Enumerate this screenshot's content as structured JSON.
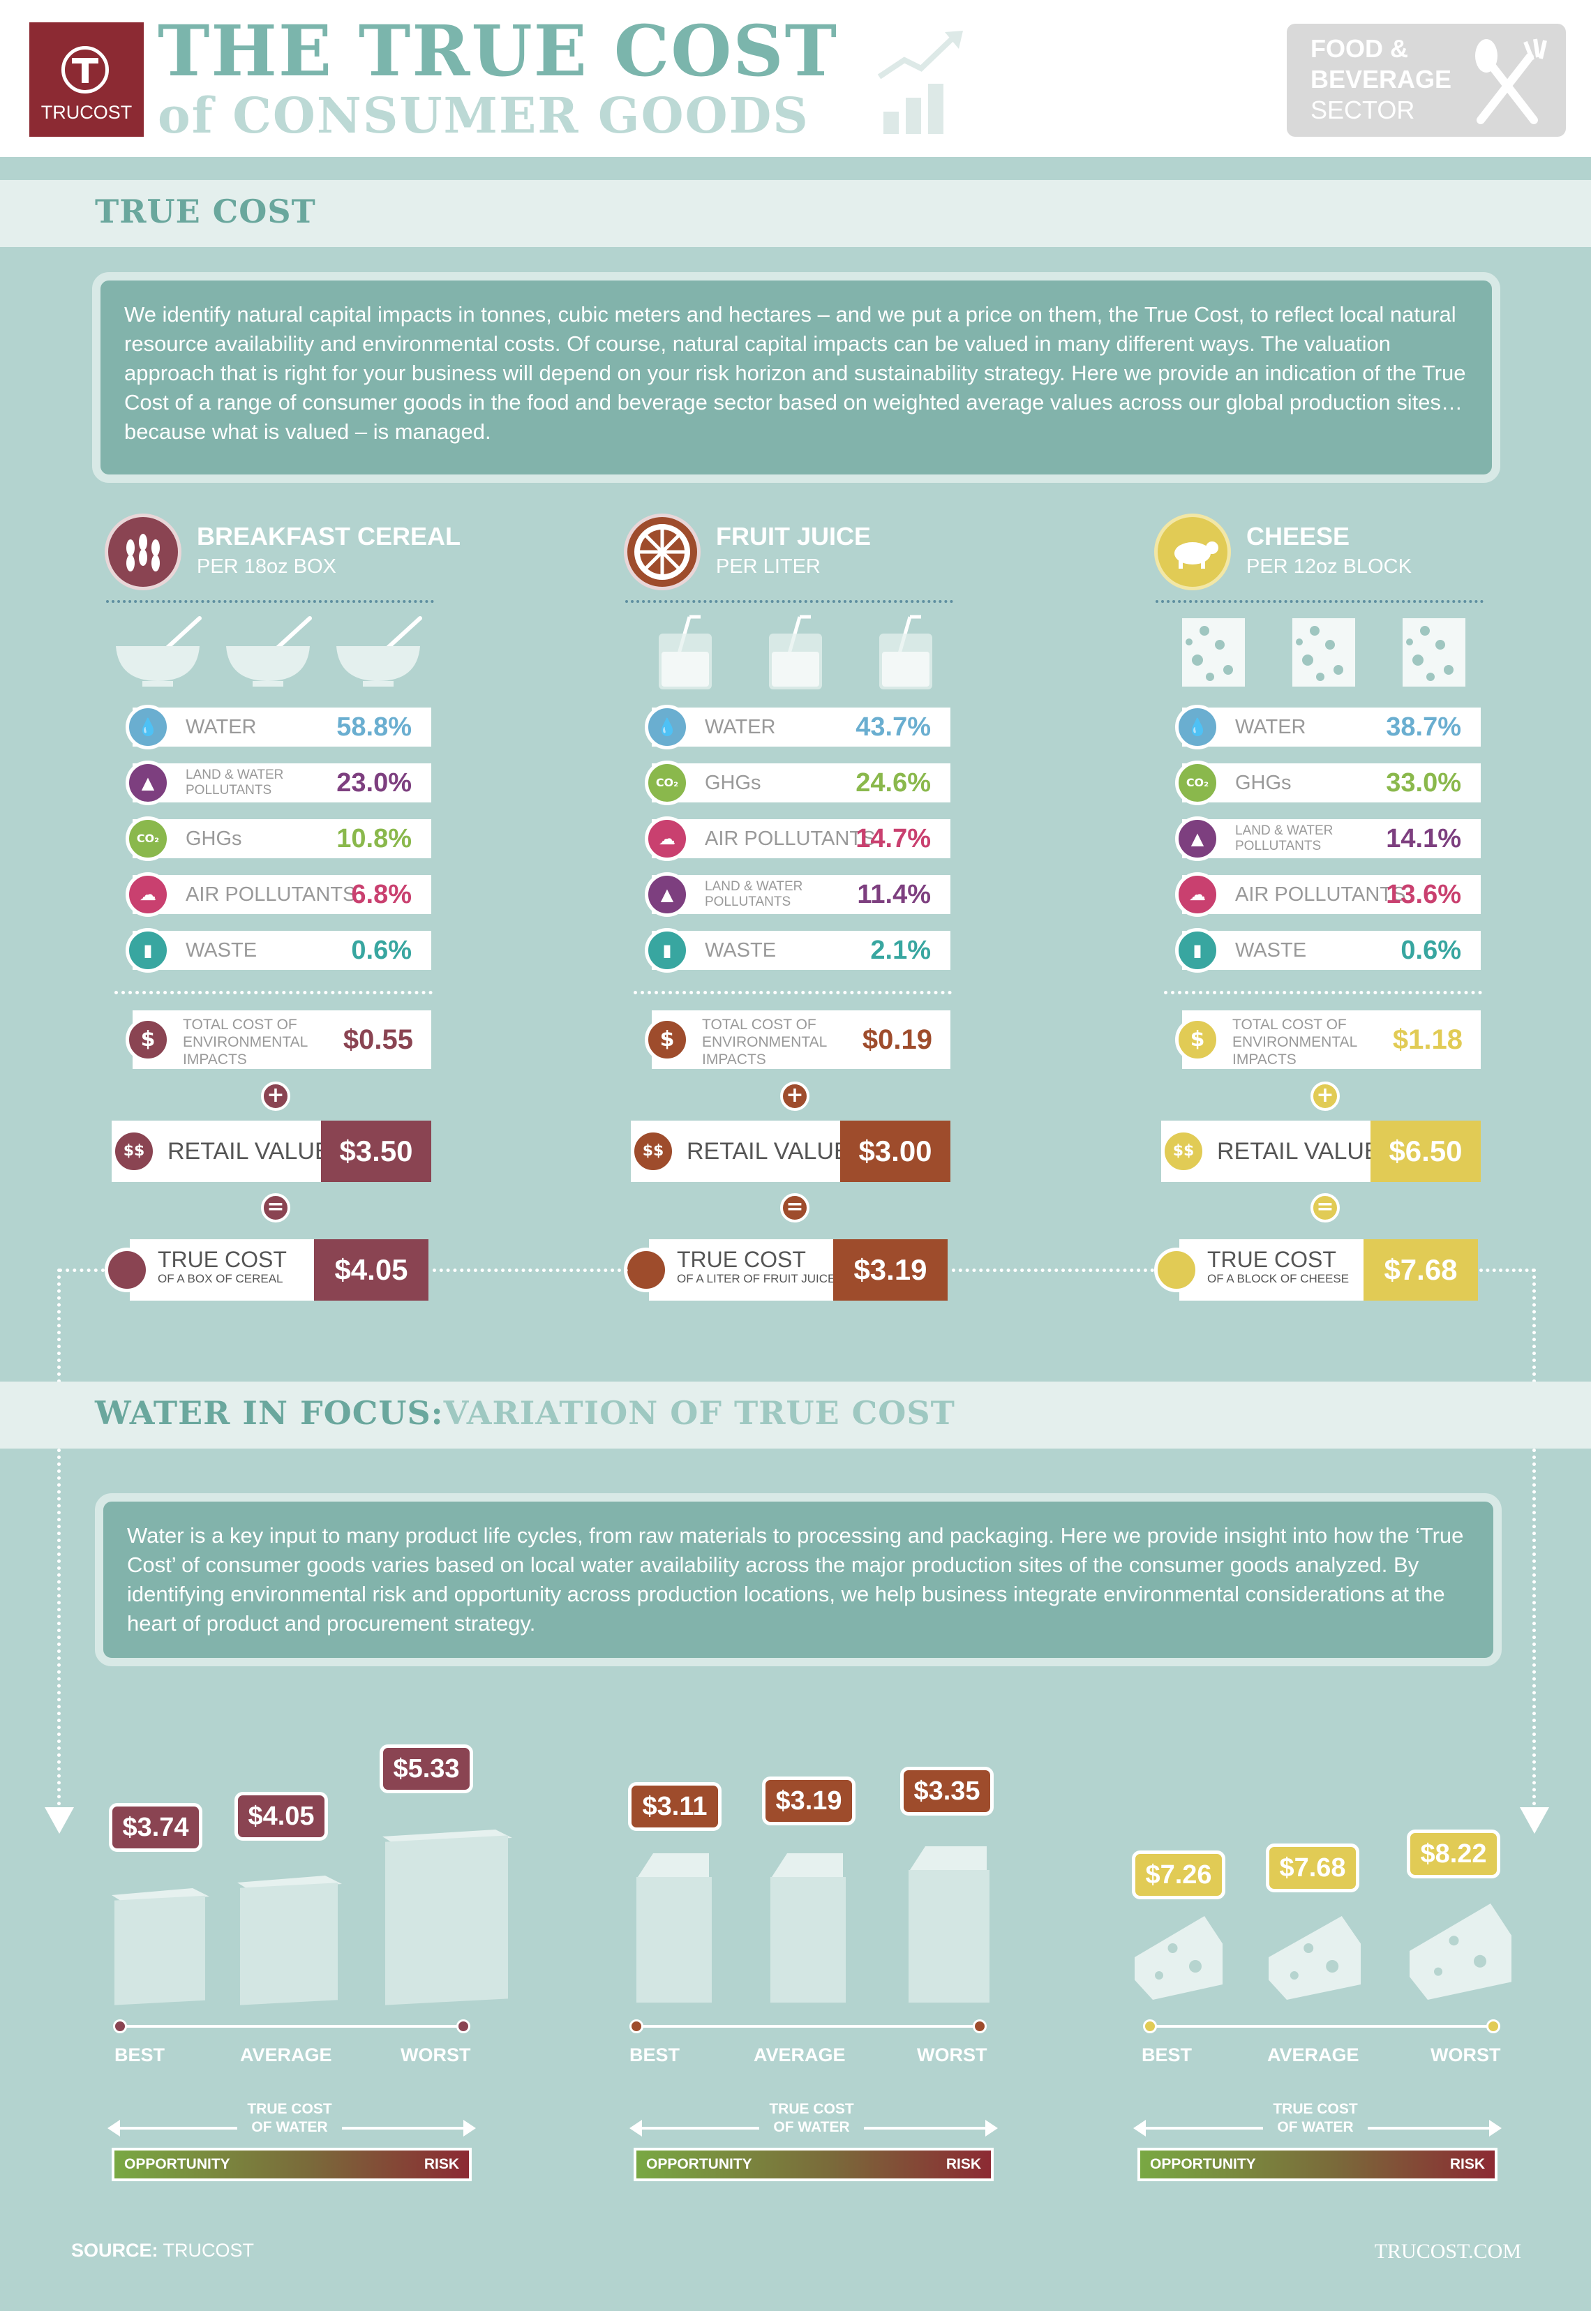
{
  "header": {
    "logo_text": "TRUCOST",
    "title_line1": "THE TRUE COST",
    "title_line2_of": "of",
    "title_line2_rest": "CONSUMER GOODS",
    "sector_line1": "FOOD &",
    "sector_line2": "BEVERAGE",
    "sector_line3": "SECTOR"
  },
  "true_cost": {
    "heading": "TRUE COST",
    "intro": "We identify natural capital impacts in tonnes, cubic meters and hectares – and we put a price on them, the True Cost, to reflect local natural resource availability and environmental costs. Of course, natural capital impacts can be valued in many different ways. The valuation approach that is right for your business will depend on your risk horizon and sustainability strategy. Here we provide an indication of the True Cost of a range of consumer goods in the food and beverage sector based on weighted average values across our global production sites… because what is valued – is managed."
  },
  "colors": {
    "water": "#6aaed0",
    "land_water": "#7d3f7f",
    "ghg": "#8ab84c",
    "air": "#c9406f",
    "waste": "#38a6a0",
    "cereal": "#8a4452",
    "juice": "#9e4c2c",
    "cheese": "#e1cb55"
  },
  "products": [
    {
      "title": "BREAKFAST CEREAL",
      "sub": "PER 18oz BOX",
      "icon": "wheat-icon",
      "rows": [
        {
          "key": "water",
          "label": "WATER",
          "pct": "58.8%"
        },
        {
          "key": "land_water",
          "label": "LAND & WATER POLLUTANTS",
          "pct": "23.0%"
        },
        {
          "key": "ghg",
          "label": "GHGs",
          "pct": "10.8%"
        },
        {
          "key": "air",
          "label": "AIR POLLUTANTS",
          "pct": "6.8%"
        },
        {
          "key": "waste",
          "label": "WASTE",
          "pct": "0.6%"
        }
      ],
      "total_label_1": "TOTAL COST OF",
      "total_label_2": "ENVIRONMENTAL",
      "total_label_3": "IMPACTS",
      "total_value": "$0.55",
      "plus": "+",
      "retail_label": "RETAIL VALUE",
      "retail_value": "$3.50",
      "equals": "=",
      "tc_label": "TRUE COST",
      "tc_sub": "OF A BOX OF CEREAL",
      "tc_value": "$4.05",
      "water_focus": {
        "best": "$3.74",
        "average": "$4.05",
        "worst": "$5.33"
      }
    },
    {
      "title": "FRUIT JUICE",
      "sub": "PER LITER",
      "icon": "orange-slice-icon",
      "rows": [
        {
          "key": "water",
          "label": "WATER",
          "pct": "43.7%"
        },
        {
          "key": "ghg",
          "label": "GHGs",
          "pct": "24.6%"
        },
        {
          "key": "air",
          "label": "AIR POLLUTANTS",
          "pct": "14.7%"
        },
        {
          "key": "land_water",
          "label": "LAND & WATER POLLUTANTS",
          "pct": "11.4%"
        },
        {
          "key": "waste",
          "label": "WASTE",
          "pct": "2.1%"
        }
      ],
      "total_label_1": "TOTAL COST OF",
      "total_label_2": "ENVIRONMENTAL",
      "total_label_3": "IMPACTS",
      "total_value": "$0.19",
      "plus": "+",
      "retail_label": "RETAIL VALUE",
      "retail_value": "$3.00",
      "equals": "=",
      "tc_label": "TRUE COST",
      "tc_sub": "OF A LITER OF FRUIT JUICE",
      "tc_value": "$3.19",
      "water_focus": {
        "best": "$3.11",
        "average": "$3.19",
        "worst": "$3.35"
      }
    },
    {
      "title": "CHEESE",
      "sub": "PER 12oz BLOCK",
      "icon": "cow-icon",
      "rows": [
        {
          "key": "water",
          "label": "WATER",
          "pct": "38.7%"
        },
        {
          "key": "ghg",
          "label": "GHGs",
          "pct": "33.0%"
        },
        {
          "key": "land_water",
          "label": "LAND & WATER POLLUTANTS",
          "pct": "14.1%"
        },
        {
          "key": "air",
          "label": "AIR POLLUTANTS",
          "pct": "13.6%"
        },
        {
          "key": "waste",
          "label": "WASTE",
          "pct": "0.6%"
        }
      ],
      "total_label_1": "TOTAL COST OF",
      "total_label_2": "ENVIRONMENTAL",
      "total_label_3": "IMPACTS",
      "total_value": "$1.18",
      "plus": "+",
      "retail_label": "RETAIL VALUE",
      "retail_value": "$6.50",
      "equals": "=",
      "tc_label": "TRUE COST",
      "tc_sub": "OF A BLOCK OF CHEESE",
      "tc_value": "$7.68",
      "water_focus": {
        "best": "$7.26",
        "average": "$7.68",
        "worst": "$8.22"
      }
    }
  ],
  "row_icon_glyphs": {
    "water": "💧",
    "land_water": "▲",
    "ghg": "CO₂",
    "air": "☁",
    "waste": "▮"
  },
  "dollar_glyph": "$",
  "double_dollar_glyph": "$$",
  "water_focus": {
    "heading": "WATER IN FOCUS:",
    "heading_sub": "VARIATION OF TRUE COST",
    "intro": "Water is a key input to many product life cycles, from raw materials to processing and packaging. Here we provide insight into how the ‘True Cost’ of consumer goods varies based on local water availability across the major production sites of the consumer goods analyzed. By identifying environmental risk and opportunity across production locations, we help business integrate environmental considerations at the heart of product and procurement strategy.",
    "best": "BEST",
    "average": "AVERAGE",
    "worst": "WORST",
    "tcw_1": "TRUE COST",
    "tcw_2": "OF WATER",
    "opportunity": "OPPORTUNITY",
    "risk": "RISK"
  },
  "footer": {
    "source_label": "SOURCE:",
    "source_value": "TRUCOST",
    "site": "TRUCOST.COM"
  }
}
